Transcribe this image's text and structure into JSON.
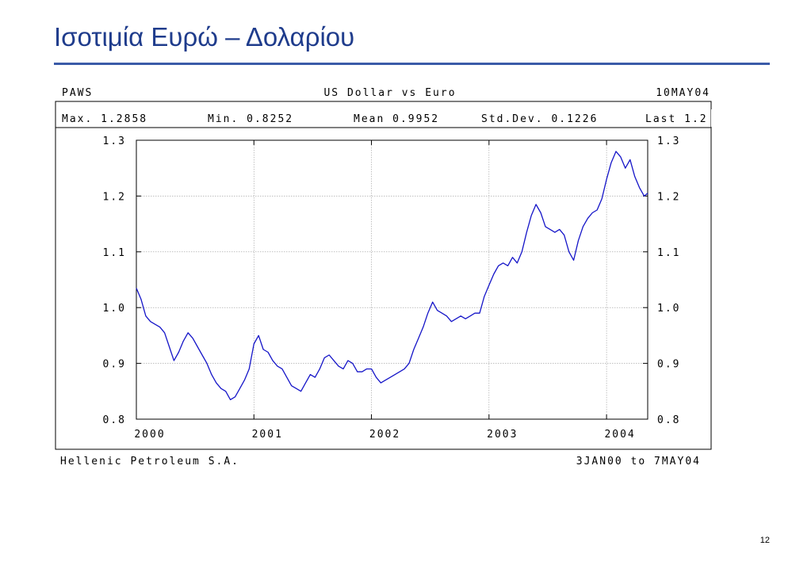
{
  "slide": {
    "title": "Ισοτιμία Ευρώ – Δολαρίου",
    "page_number": "12"
  },
  "chart_data": {
    "type": "line",
    "header": {
      "left": "PAWS",
      "center": "US Dollar vs Euro",
      "right": "10MAY04"
    },
    "stats": {
      "max": "Max. 1.2858",
      "min": "Min. 0.8252",
      "mean": "Mean 0.9952",
      "std_dev": "Std.Dev. 0.1226",
      "last": "Last 1.2"
    },
    "footer": {
      "left": "Hellenic Petroleum S.A.",
      "right": "3JAN00 to 7MAY04"
    },
    "y_ticks": [
      "1.3",
      "1.2",
      "1.1",
      "1.0",
      "0.9",
      "0.8"
    ],
    "x_ticks": [
      "2000",
      "2001",
      "2002",
      "2003",
      "2004"
    ],
    "ylim": [
      0.8,
      1.3
    ],
    "xlim": [
      2000.0,
      2004.35
    ],
    "grid": true,
    "line_color": "#1515c8",
    "series": [
      {
        "x": [
          2000.0,
          2000.04,
          2000.08,
          2000.12,
          2000.16,
          2000.2,
          2000.24,
          2000.28,
          2000.32,
          2000.36,
          2000.4,
          2000.44,
          2000.48,
          2000.52,
          2000.56,
          2000.6,
          2000.64,
          2000.68,
          2000.72,
          2000.76,
          2000.8,
          2000.84,
          2000.88,
          2000.92,
          2000.96,
          2001.0,
          2001.04,
          2001.08,
          2001.12,
          2001.16,
          2001.2,
          2001.24,
          2001.28,
          2001.32,
          2001.36,
          2001.4,
          2001.44,
          2001.48,
          2001.52,
          2001.56,
          2001.6,
          2001.64,
          2001.68,
          2001.72,
          2001.76,
          2001.8,
          2001.84,
          2001.88,
          2001.92,
          2001.96,
          2002.0,
          2002.04,
          2002.08,
          2002.12,
          2002.16,
          2002.2,
          2002.24,
          2002.28,
          2002.32,
          2002.36,
          2002.4,
          2002.44,
          2002.48,
          2002.52,
          2002.56,
          2002.6,
          2002.64,
          2002.68,
          2002.72,
          2002.76,
          2002.8,
          2002.84,
          2002.88,
          2002.92,
          2002.96,
          2003.0,
          2003.04,
          2003.08,
          2003.12,
          2003.16,
          2003.2,
          2003.24,
          2003.28,
          2003.32,
          2003.36,
          2003.4,
          2003.44,
          2003.48,
          2003.52,
          2003.56,
          2003.6,
          2003.64,
          2003.68,
          2003.72,
          2003.76,
          2003.8,
          2003.84,
          2003.88,
          2003.92,
          2003.96,
          2004.0,
          2004.04,
          2004.08,
          2004.12,
          2004.16,
          2004.2,
          2004.24,
          2004.28,
          2004.32,
          2004.35
        ],
        "y": [
          1.035,
          1.015,
          0.985,
          0.975,
          0.97,
          0.965,
          0.955,
          0.93,
          0.905,
          0.92,
          0.94,
          0.955,
          0.945,
          0.93,
          0.915,
          0.9,
          0.88,
          0.865,
          0.855,
          0.85,
          0.835,
          0.84,
          0.855,
          0.87,
          0.89,
          0.935,
          0.95,
          0.925,
          0.92,
          0.905,
          0.895,
          0.89,
          0.875,
          0.86,
          0.855,
          0.85,
          0.865,
          0.88,
          0.875,
          0.89,
          0.91,
          0.915,
          0.905,
          0.895,
          0.89,
          0.905,
          0.9,
          0.885,
          0.885,
          0.89,
          0.89,
          0.875,
          0.865,
          0.87,
          0.875,
          0.88,
          0.885,
          0.89,
          0.9,
          0.925,
          0.945,
          0.965,
          0.99,
          1.01,
          0.995,
          0.99,
          0.985,
          0.975,
          0.98,
          0.985,
          0.98,
          0.985,
          0.99,
          0.99,
          1.02,
          1.04,
          1.06,
          1.075,
          1.08,
          1.075,
          1.09,
          1.08,
          1.1,
          1.135,
          1.165,
          1.185,
          1.17,
          1.145,
          1.14,
          1.135,
          1.14,
          1.13,
          1.1,
          1.085,
          1.12,
          1.145,
          1.16,
          1.17,
          1.175,
          1.195,
          1.23,
          1.26,
          1.28,
          1.27,
          1.25,
          1.265,
          1.235,
          1.215,
          1.2,
          1.205
        ]
      }
    ]
  }
}
